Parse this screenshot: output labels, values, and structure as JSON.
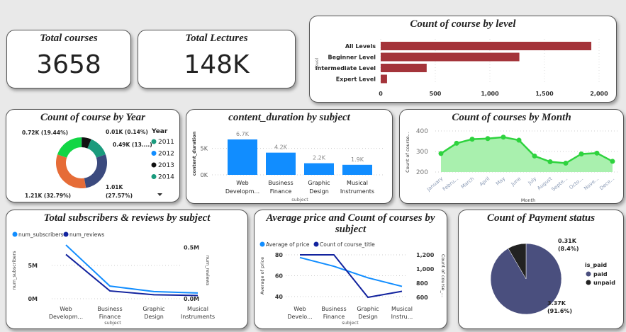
{
  "kpis": [
    {
      "label": "Total courses",
      "value": "3658"
    },
    {
      "label": "Total Lectures",
      "value": "148K"
    }
  ],
  "level_chart": {
    "type": "bar",
    "title": "Count of course by level",
    "ylabel": "level",
    "categories": [
      "All Levels",
      "Beginner Level",
      "Intermediate Level",
      "Expert Level"
    ],
    "values": [
      1929,
      1270,
      421,
      58
    ],
    "xlim": [
      0,
      2000
    ],
    "ticks": [
      "0",
      "500",
      "1,000",
      "1,500",
      "2,000"
    ],
    "tick_values": [
      0,
      500,
      1000,
      1500,
      2000
    ],
    "color": "#A4343A"
  },
  "year_chart": {
    "type": "pie",
    "title": "Count of course by Year",
    "legend_title": "Year",
    "legend": [
      {
        "label": "2011",
        "color": "#1A9B7D"
      },
      {
        "label": "2012",
        "color": "#118DFF"
      },
      {
        "label": "2013",
        "color": "#111111"
      },
      {
        "label": "2014",
        "color": "#1A9B7D"
      }
    ],
    "slices": [
      {
        "value": 5,
        "color": "#118DFF",
        "label": "0.01K (0.14%)"
      },
      {
        "value": 223,
        "color": "#111111",
        "label": ""
      },
      {
        "value": 490,
        "color": "#1A9B7D",
        "label": "0.49K (13....)"
      },
      {
        "value": 1010,
        "color": "#3B4A7E",
        "label": "1.01K",
        "label2": "(27.57%)"
      },
      {
        "value": 1210,
        "color": "#E66C37",
        "label": "1.21K (32.79%)"
      },
      {
        "value": 720,
        "color": "#12D645",
        "label": "0.72K (19.44%)"
      }
    ]
  },
  "duration_chart": {
    "type": "bar",
    "title": "content_duration by subject",
    "xlabel": "subject",
    "ylabel": "content_duration",
    "categories": [
      [
        "Web",
        "Developm..."
      ],
      [
        "Business",
        "Finance"
      ],
      [
        "Graphic",
        "Design"
      ],
      [
        "Musical",
        "Instruments"
      ]
    ],
    "values": [
      6700,
      4200,
      2200,
      1900
    ],
    "data_labels": [
      "6.7K",
      "4.2K",
      "2.2K",
      "1.9K"
    ],
    "ticks": [
      "0K",
      "5K"
    ],
    "tick_values": [
      0,
      5000
    ],
    "ylim": [
      0,
      7500
    ],
    "color": "#118DFF"
  },
  "month_chart": {
    "type": "area",
    "title": "Count of courses by Month",
    "xlabel": "Month",
    "ylabel": "Count of course...",
    "categories": [
      "January",
      "Febru...",
      "March",
      "April",
      "May",
      "June",
      "July",
      "August",
      "Septe...",
      "Octo...",
      "Nove...",
      "Dece..."
    ],
    "values": [
      290,
      340,
      360,
      363,
      370,
      355,
      278,
      250,
      243,
      288,
      292,
      252
    ],
    "ylim": [
      200,
      400
    ],
    "ticks": [
      "200",
      "300",
      "400"
    ],
    "tick_values": [
      200,
      300,
      400
    ],
    "color": "#2ED33E"
  },
  "subs_chart": {
    "type": "line",
    "title": "Total subscribers & reviews by subject",
    "xlabel": "subject",
    "ylabel": "num_subscribers",
    "ylabel2": "num_reviews",
    "categories": [
      [
        "Web",
        "Developm..."
      ],
      [
        "Business",
        "Finance"
      ],
      [
        "Graphic",
        "Design"
      ],
      [
        "Musical",
        "Instruments"
      ]
    ],
    "series": [
      {
        "name": "num_subscribers",
        "values": [
          8.07,
          1.9,
          1.07,
          0.86
        ],
        "color": "#118DFF"
      },
      {
        "name": "num_reviews",
        "values": [
          0.43,
          0.076,
          0.039,
          0.031
        ],
        "color": "#12239E"
      }
    ],
    "ylim": [
      0,
      8.5
    ],
    "ylim2": [
      0,
      0.55
    ],
    "ticks": [
      "0M",
      "5M"
    ],
    "tick_values": [
      0,
      5
    ],
    "ticks2": [
      "0.0M",
      "0.5M"
    ],
    "tick_values2": [
      0,
      0.5
    ]
  },
  "price_chart": {
    "type": "line",
    "title": "Average price and Count of courses by",
    "title2": "subject",
    "xlabel": "subject",
    "ylabel": "Average of price",
    "ylabel2": "Count of course_...",
    "categories": [
      [
        "Web",
        "Develo..."
      ],
      [
        "Business",
        "Finance"
      ],
      [
        "Graphic",
        "Design"
      ],
      [
        "Musical",
        "Instru..."
      ]
    ],
    "series": [
      {
        "name": "Average of price",
        "values": [
          77.4,
          69,
          58,
          49.8
        ],
        "color": "#118DFF"
      },
      {
        "name": "Count of course_title",
        "values": [
          1200,
          1200,
          600,
          685
        ],
        "color": "#12239E"
      }
    ],
    "ylim": [
      38,
      82
    ],
    "ylim2": [
      580,
      1230
    ],
    "ticks": [
      "40",
      "60",
      "80"
    ],
    "tick_values": [
      40,
      60,
      80
    ],
    "ticks2": [
      "600",
      "800",
      "1,000",
      "1,200"
    ],
    "tick_values2": [
      600,
      800,
      1000,
      1200
    ]
  },
  "payment_chart": {
    "type": "pie",
    "title": "Count of Payment status",
    "legend_title": "is_paid",
    "slices": [
      {
        "name": "paid",
        "value": 3370,
        "color": "#4A4F7E",
        "label": "3.37K",
        "label2": "(91.6%)"
      },
      {
        "name": "unpaid",
        "value": 310,
        "color": "#222222",
        "label": "0.31K",
        "label2": "(8.4%)"
      }
    ]
  }
}
